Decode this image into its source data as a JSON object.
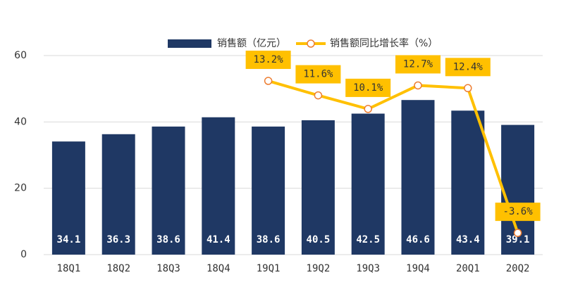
{
  "chart_data": {
    "type": "bar_line",
    "categories": [
      "18Q1",
      "18Q2",
      "18Q3",
      "18Q4",
      "19Q1",
      "19Q2",
      "19Q3",
      "19Q4",
      "20Q1",
      "20Q2"
    ],
    "series": [
      {
        "name": "销售额（亿元）",
        "type": "bar",
        "color": "#1f3864",
        "values": [
          34.1,
          36.3,
          38.6,
          41.4,
          38.6,
          40.5,
          42.5,
          46.6,
          43.4,
          39.1
        ]
      },
      {
        "name": "销售额同比增长率（%）",
        "type": "line",
        "axis": "y2",
        "color": "#ffc000",
        "marker_color": "#ed7d31",
        "values": [
          null,
          null,
          null,
          null,
          13.2,
          11.6,
          10.1,
          12.7,
          12.4,
          -3.6
        ],
        "value_labels": [
          null,
          null,
          null,
          null,
          "13.2%",
          "11.6%",
          "10.1%",
          "12.7%",
          "12.4%",
          "-3.6%"
        ]
      }
    ],
    "ylim": [
      0,
      60
    ],
    "yticks": [
      0,
      20,
      40,
      60
    ],
    "y2lim": [
      -6,
      16
    ],
    "grid": true,
    "legend": "top"
  }
}
